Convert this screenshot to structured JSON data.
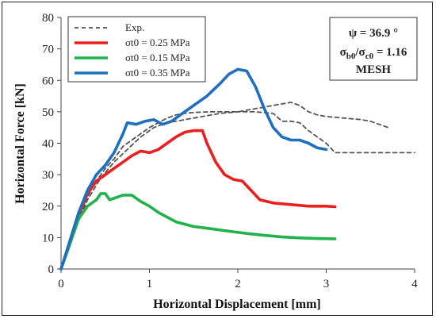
{
  "chart_data": {
    "type": "line",
    "xlabel": "Horizontal Displacement [mm]",
    "ylabel": "Horizontal Force [kN]",
    "xlim": [
      0,
      4
    ],
    "ylim": [
      0,
      80
    ],
    "xticks": [
      0,
      1,
      2,
      3,
      4
    ],
    "yticks": [
      0,
      10,
      20,
      30,
      40,
      50,
      60,
      70,
      80
    ],
    "grid": false,
    "legend_position": "top-left",
    "annotation": {
      "line1": "ψ = 36.9 °",
      "line2_base1": "σ",
      "line2_sub1": "b0",
      "line2_mid": "/σ",
      "line2_sub2": "c0",
      "line2_tail": " = 1.16",
      "line3": "MESH"
    },
    "series": [
      {
        "name": "Exp.",
        "color": "#555555",
        "dashed": true,
        "points": [
          [
            0,
            0
          ],
          [
            0.1,
            8
          ],
          [
            0.2,
            16
          ],
          [
            0.3,
            23
          ],
          [
            0.4,
            28
          ],
          [
            0.5,
            32
          ],
          [
            0.6,
            35
          ],
          [
            0.7,
            39
          ],
          [
            0.8,
            41
          ],
          [
            0.9,
            43
          ],
          [
            1.0,
            45
          ],
          [
            1.1,
            46.5
          ],
          [
            1.2,
            48
          ],
          [
            1.3,
            49
          ],
          [
            1.4,
            49.5
          ],
          [
            1.5,
            49.8
          ],
          [
            1.7,
            50
          ],
          [
            1.9,
            50
          ],
          [
            2.0,
            50
          ],
          [
            2.2,
            51
          ],
          [
            2.4,
            52
          ],
          [
            2.6,
            53
          ],
          [
            2.7,
            52
          ],
          [
            2.8,
            50
          ],
          [
            2.9,
            49
          ],
          [
            3.0,
            48.5
          ],
          [
            3.2,
            48
          ],
          [
            3.4,
            47.5
          ],
          [
            3.5,
            47
          ],
          [
            3.6,
            46
          ],
          [
            3.7,
            45
          ]
        ]
      },
      {
        "name": "Exp.",
        "color": "#555555",
        "dashed": true,
        "points": [
          [
            0,
            0
          ],
          [
            0.15,
            12
          ],
          [
            0.3,
            22
          ],
          [
            0.45,
            29
          ],
          [
            0.6,
            34
          ],
          [
            0.75,
            38
          ],
          [
            0.9,
            42
          ],
          [
            1.05,
            45
          ],
          [
            1.2,
            46.5
          ],
          [
            1.4,
            47.5
          ],
          [
            1.6,
            48.5
          ],
          [
            1.8,
            49.5
          ],
          [
            2.0,
            50
          ],
          [
            2.2,
            50
          ],
          [
            2.4,
            49.5
          ],
          [
            2.5,
            47
          ],
          [
            2.6,
            47
          ],
          [
            2.7,
            46.5
          ],
          [
            2.8,
            44
          ],
          [
            2.9,
            42
          ],
          [
            3.0,
            40
          ],
          [
            3.1,
            37
          ],
          [
            3.3,
            37
          ],
          [
            3.6,
            37
          ],
          [
            4.0,
            37
          ]
        ]
      },
      {
        "name": "σt0 = 0.25 MPa",
        "color": "#e8201f",
        "dashed": false,
        "points": [
          [
            0,
            0
          ],
          [
            0.1,
            8
          ],
          [
            0.2,
            17
          ],
          [
            0.3,
            24
          ],
          [
            0.4,
            28
          ],
          [
            0.5,
            30
          ],
          [
            0.6,
            32
          ],
          [
            0.7,
            34
          ],
          [
            0.8,
            36
          ],
          [
            0.9,
            37.5
          ],
          [
            1.0,
            37
          ],
          [
            1.1,
            38
          ],
          [
            1.2,
            40
          ],
          [
            1.3,
            42
          ],
          [
            1.4,
            43.5
          ],
          [
            1.5,
            44
          ],
          [
            1.6,
            44
          ],
          [
            1.65,
            40
          ],
          [
            1.75,
            34
          ],
          [
            1.85,
            30
          ],
          [
            1.95,
            28.5
          ],
          [
            2.05,
            28
          ],
          [
            2.15,
            25
          ],
          [
            2.25,
            22
          ],
          [
            2.4,
            21
          ],
          [
            2.6,
            20.5
          ],
          [
            2.8,
            20
          ],
          [
            3.0,
            20
          ],
          [
            3.1,
            19.8
          ]
        ]
      },
      {
        "name": "σt0 = 0.15 MPa",
        "color": "#22b24c",
        "dashed": false,
        "points": [
          [
            0,
            0
          ],
          [
            0.1,
            8
          ],
          [
            0.2,
            16
          ],
          [
            0.3,
            20
          ],
          [
            0.4,
            22
          ],
          [
            0.45,
            24
          ],
          [
            0.5,
            24
          ],
          [
            0.55,
            22
          ],
          [
            0.6,
            22.5
          ],
          [
            0.7,
            23.5
          ],
          [
            0.8,
            23.5
          ],
          [
            0.9,
            21.5
          ],
          [
            1.0,
            20
          ],
          [
            1.1,
            18
          ],
          [
            1.2,
            16.5
          ],
          [
            1.3,
            15
          ],
          [
            1.5,
            13.5
          ],
          [
            1.7,
            12.8
          ],
          [
            1.9,
            12
          ],
          [
            2.1,
            11.3
          ],
          [
            2.3,
            10.7
          ],
          [
            2.5,
            10.2
          ],
          [
            2.7,
            9.9
          ],
          [
            2.9,
            9.7
          ],
          [
            3.1,
            9.6
          ]
        ]
      },
      {
        "name": "σt0 = 0.35 MPa",
        "color": "#1f6fbf",
        "dashed": false,
        "points": [
          [
            0,
            0
          ],
          [
            0.1,
            9
          ],
          [
            0.2,
            18
          ],
          [
            0.3,
            25
          ],
          [
            0.4,
            30
          ],
          [
            0.5,
            33
          ],
          [
            0.6,
            37
          ],
          [
            0.7,
            43
          ],
          [
            0.75,
            46.5
          ],
          [
            0.85,
            46
          ],
          [
            0.95,
            47
          ],
          [
            1.05,
            47.5
          ],
          [
            1.15,
            46
          ],
          [
            1.25,
            47
          ],
          [
            1.35,
            49
          ],
          [
            1.5,
            52
          ],
          [
            1.65,
            55
          ],
          [
            1.8,
            59
          ],
          [
            1.9,
            62
          ],
          [
            2.0,
            63.5
          ],
          [
            2.1,
            63
          ],
          [
            2.2,
            58
          ],
          [
            2.3,
            51
          ],
          [
            2.4,
            45
          ],
          [
            2.5,
            42
          ],
          [
            2.6,
            41
          ],
          [
            2.7,
            41
          ],
          [
            2.8,
            40
          ],
          [
            2.9,
            38.5
          ],
          [
            3.0,
            38
          ]
        ]
      }
    ]
  }
}
